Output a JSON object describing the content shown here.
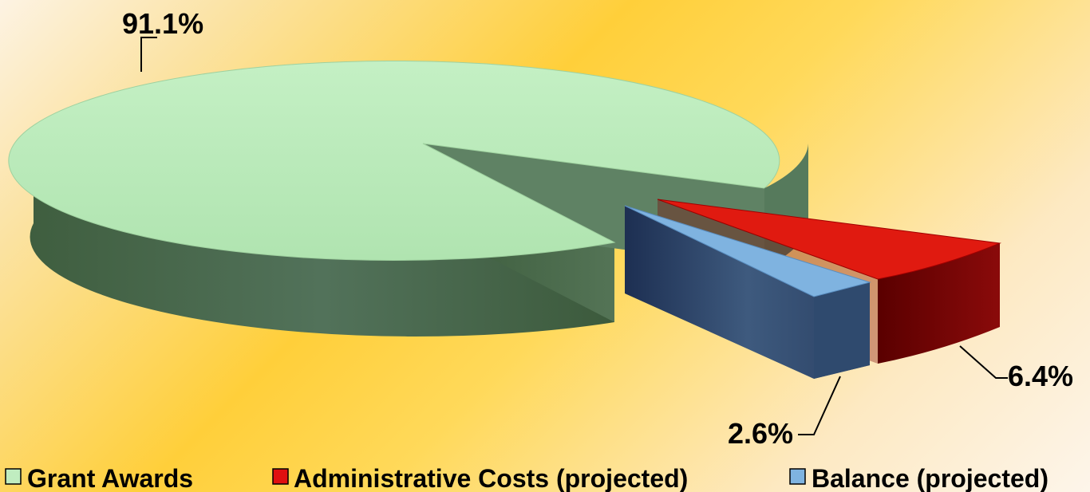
{
  "chart_data": {
    "type": "pie",
    "title": "",
    "legend_position": "bottom",
    "slices": [
      {
        "name": "Grant Awards",
        "value": 91.1,
        "label": "91.1%",
        "color": "#b8ebb8"
      },
      {
        "name": "Administrative Costs (projected)",
        "value": 6.4,
        "label": "6.4%",
        "color": "#e01010"
      },
      {
        "name": "Balance (projected)",
        "value": 2.6,
        "label": "2.6%",
        "color": "#6fa8dc"
      }
    ]
  }
}
